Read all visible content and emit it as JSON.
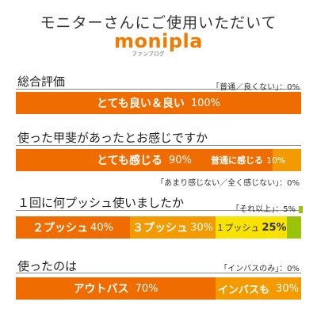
{
  "header": {
    "title": "モニターさんにご使用いただいて",
    "logo": "monipla",
    "logo_sub": "ファンブログ"
  },
  "q1": {
    "question": "総合評価",
    "note": "「普通／良くない」：0%",
    "seg1_label": "とても良い＆良い",
    "seg1_pct": "100%"
  },
  "q2": {
    "question": "使った甲斐があったとお感じですか",
    "seg1_label": "とても感じる",
    "seg1_pct": "90%",
    "seg2_label": "普通に感じる",
    "seg2_pct": "10%",
    "note": "「あまり感じない／全く感じない」：0%"
  },
  "q3": {
    "question": "１回に何プッシュ使いましたか",
    "note": "「それ以上」：5%",
    "seg1_label": "２プッシュ",
    "seg1_pct": "40%",
    "seg2_label": "３プッシュ",
    "seg2_pct": "30%",
    "seg3_label": "１プッシュ",
    "seg3_pct": "25%"
  },
  "q4": {
    "question": "使ったのは",
    "note": "「インバスのみ」：0%",
    "seg1_label": "アウトバス",
    "seg1_pct": "70%",
    "seg2_label": "インバスも",
    "seg2_pct": "30%"
  },
  "colors": {
    "orange_dark": "#ef6d00",
    "orange_mid": "#f39a00",
    "yellow": "#f9e100",
    "green": "#9ac30a",
    "logo": "#ef7c00"
  }
}
